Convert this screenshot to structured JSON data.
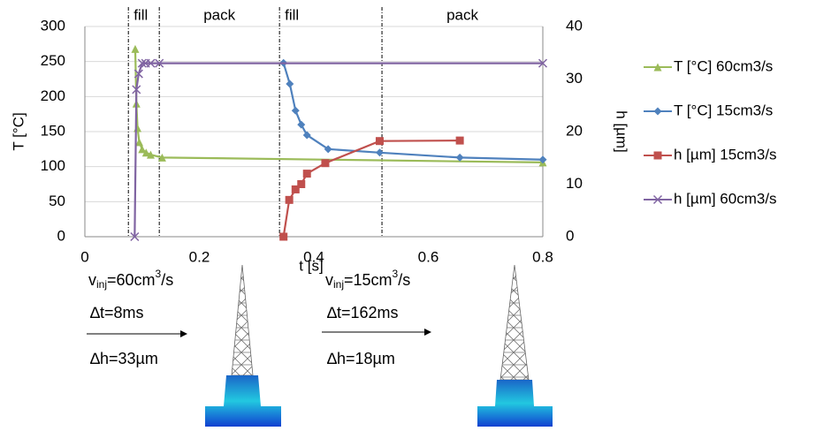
{
  "chart_data": {
    "type": "line",
    "xlabel": "t [s]",
    "ylabel": "T [°C]",
    "y2label": "h [µm]",
    "xlim": [
      0,
      0.8
    ],
    "xticks": [
      0,
      0.2,
      0.4,
      0.6,
      0.8
    ],
    "ylim": [
      0,
      300
    ],
    "yticks": [
      0,
      50,
      100,
      150,
      200,
      250,
      300
    ],
    "y2lim": [
      0,
      40
    ],
    "y2ticks": [
      0,
      10,
      20,
      30,
      40
    ],
    "grid": true,
    "phase_lines": [
      0.076,
      0.13,
      0.34,
      0.519
    ],
    "phases": [
      "fill",
      "pack",
      "fill",
      "pack"
    ],
    "series": [
      {
        "name": "T [°C] 60cm3/s",
        "color": "#9bbb59",
        "marker": "triangle",
        "x": [
          0.088,
          0.09,
          0.092,
          0.095,
          0.1,
          0.107,
          0.115,
          0.135,
          0.8
        ],
        "y": [
          268,
          190,
          155,
          135,
          125,
          120,
          117,
          113,
          106
        ]
      },
      {
        "name": "T [°C] 15cm3/s",
        "color": "#4f81bd",
        "marker": "diamond",
        "x": [
          0.347,
          0.358,
          0.368,
          0.378,
          0.388,
          0.425,
          0.515,
          0.655,
          0.8
        ],
        "y": [
          248,
          218,
          180,
          160,
          145,
          125,
          120,
          113,
          110
        ]
      },
      {
        "name": "h [µm] 15cm3/s",
        "color": "#c0504d",
        "marker": "square",
        "axis": "y2",
        "x": [
          0.347,
          0.357,
          0.368,
          0.378,
          0.388,
          0.42,
          0.515,
          0.655
        ],
        "y": [
          0,
          7,
          9,
          10,
          12,
          14,
          18.2,
          18.3
        ]
      },
      {
        "name": "h [µm] 60cm3/s",
        "color": "#8064a2",
        "marker": "x",
        "axis": "y2",
        "x": [
          0.087,
          0.09,
          0.094,
          0.1,
          0.106,
          0.115,
          0.13,
          0.8
        ],
        "y": [
          0,
          28,
          31,
          33,
          33,
          33,
          33,
          33
        ]
      }
    ]
  },
  "annotations": [
    {
      "v": "v",
      "sub": "inj",
      "eq": "=60cm",
      "sup": "3",
      "tail": "/s",
      "dt": "∆t=8ms",
      "dh": "∆h=33µm"
    },
    {
      "v": "v",
      "sub": "inj",
      "eq": "=15cm",
      "sup": "3",
      "tail": "/s",
      "dt": "∆t=162ms",
      "dh": "∆h=18µm"
    }
  ]
}
